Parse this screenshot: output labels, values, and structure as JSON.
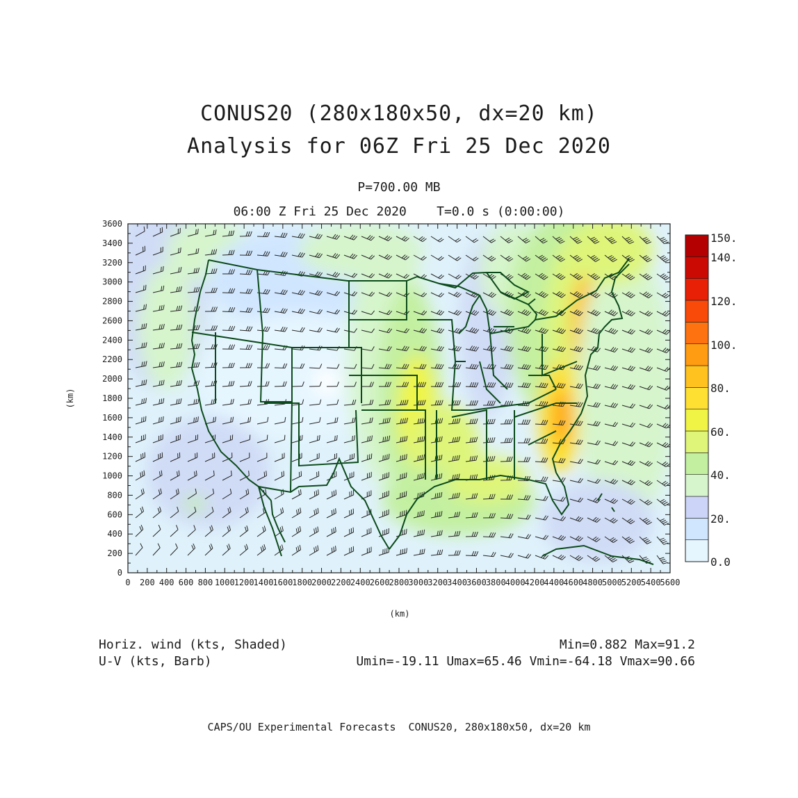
{
  "title": {
    "line1": "CONUS20 (280x180x50, dx=20 km)",
    "line2": "Analysis for 06Z Fri 25 Dec 2020"
  },
  "level_label": "P=700.00 MB",
  "time_label": "06:00 Z Fri 25 Dec 2020    T=0.0 s (0:00:00)",
  "xaxis_label": "(km)",
  "yaxis_label": "(km)",
  "x_ticks": [
    0,
    200,
    400,
    600,
    800,
    1000,
    1200,
    1400,
    1600,
    1800,
    2000,
    2200,
    2400,
    2600,
    2800,
    3000,
    3200,
    3400,
    3600,
    3800,
    4000,
    4200,
    4400,
    4600,
    4800,
    5000,
    5200,
    5400,
    5600
  ],
  "y_ticks": [
    0,
    200,
    400,
    600,
    800,
    1000,
    1200,
    1400,
    1600,
    1800,
    2000,
    2200,
    2400,
    2600,
    2800,
    3000,
    3200,
    3400,
    3600
  ],
  "colorbar": {
    "labels": [
      "0.0",
      "20.",
      "40.",
      "60.",
      "80.",
      "100.",
      "120.",
      "140.",
      "150."
    ],
    "colors": [
      "#e6f6ff",
      "#d0e6ff",
      "#ccd5f7",
      "#d6f5cc",
      "#c3f0a0",
      "#def57a",
      "#f0f545",
      "#fde032",
      "#ffc21f",
      "#ff9c12",
      "#ff7210",
      "#fa4a0a",
      "#e82006",
      "#cc0a04",
      "#b40000"
    ]
  },
  "legend_left": {
    "line1": "Horiz. wind (kts, Shaded)",
    "line2": "U-V (kts, Barb)"
  },
  "legend_right": {
    "line1": "Min=0.882 Max=91.2",
    "line2": "Umin=-19.11 Umax=65.46 Vmin=-64.18 Vmax=90.66"
  },
  "footer": "CAPS/OU Experimental Forecasts  CONUS20, 280x180x50, dx=20 km",
  "colors": {
    "map_lines": "#0b4a1a",
    "frame": "#1a1a1a",
    "barbs": "#222222"
  }
}
